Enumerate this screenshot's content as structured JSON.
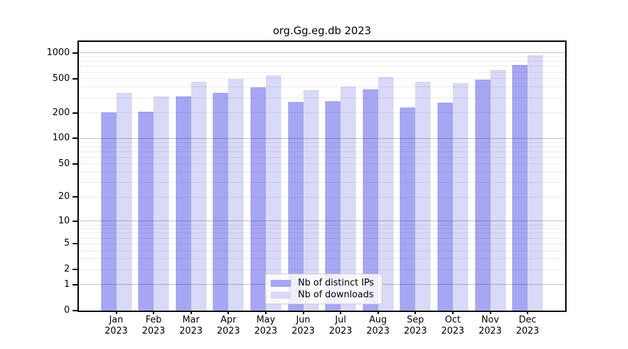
{
  "chart_data": {
    "type": "bar",
    "title": "org.Gg.eg.db 2023",
    "year": "2023",
    "categories": [
      "Jan",
      "Feb",
      "Mar",
      "Apr",
      "May",
      "Jun",
      "Jul",
      "Aug",
      "Sep",
      "Oct",
      "Nov",
      "Dec"
    ],
    "series": [
      {
        "name": "Nb of distinct IPs",
        "color": "#a6a6f4",
        "values": [
          202,
          207,
          311,
          342,
          401,
          268,
          275,
          378,
          232,
          262,
          491,
          730
        ]
      },
      {
        "name": "Nb of downloads",
        "color": "#d9d9f8",
        "values": [
          344,
          314,
          467,
          500,
          545,
          373,
          405,
          526,
          459,
          448,
          640,
          949
        ]
      }
    ],
    "yscale": "log1p",
    "yticks": [
      0,
      1,
      2,
      5,
      10,
      20,
      50,
      100,
      200,
      500,
      1000
    ],
    "ylim": [
      0,
      1350
    ],
    "grid": true,
    "legend_position": "lower center"
  }
}
